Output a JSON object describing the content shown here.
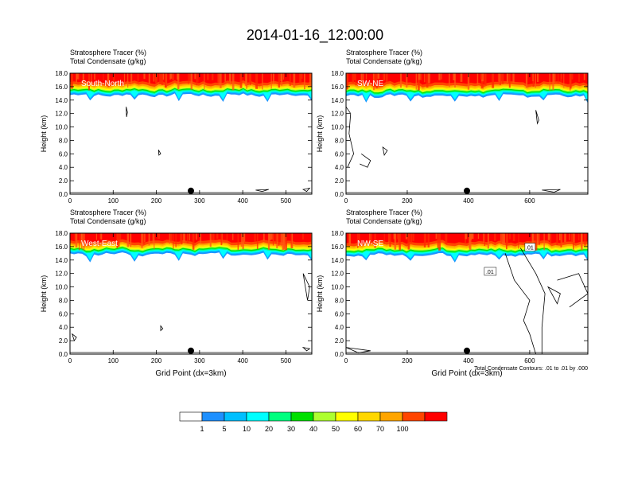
{
  "figure": {
    "title": "2014-01-16_12:00:00",
    "contour_note": "Total Condensate Contours: .01 to .01 by .000",
    "contour_label": ".01"
  },
  "colorbar": {
    "colors": [
      "#ffffff",
      "#1e90ff",
      "#00bfff",
      "#00ffff",
      "#00ff7f",
      "#00e000",
      "#adff2f",
      "#ffff00",
      "#ffd700",
      "#ffa500",
      "#ff4500",
      "#ff0000"
    ],
    "labels": [
      "1",
      "5",
      "10",
      "20",
      "30",
      "40",
      "50",
      "60",
      "70",
      "100"
    ]
  },
  "chart_data": [
    {
      "type": "heatmap",
      "panel": "South-North",
      "title_lines": [
        "Stratosphere Tracer   (%)",
        "Total Condensate   (g/kg)"
      ],
      "ylabel": "Height (km)",
      "xlabel": "",
      "ylim": [
        0,
        18
      ],
      "xlim": [
        0,
        560
      ],
      "yticks": [
        "0.0",
        "2.0",
        "4.0",
        "6.0",
        "8.0",
        "10.0",
        "12.0",
        "14.0",
        "16.0",
        "18.0"
      ],
      "xticks": [
        "0",
        "100",
        "200",
        "300",
        "400",
        "500"
      ],
      "marker_x": 280,
      "tropopause_km": 15.3,
      "contours": [
        [
          [
            130,
            13
          ],
          [
            133,
            12.2
          ],
          [
            131,
            11.5
          ]
        ],
        [
          [
            205,
            6.6
          ],
          [
            210,
            6
          ],
          [
            206,
            5.8
          ]
        ],
        [
          [
            430,
            0.6
          ],
          [
            460,
            0.7
          ],
          [
            445,
            0.4
          ]
        ],
        [
          [
            540,
            0.7
          ],
          [
            555,
            0.9
          ],
          [
            548,
            0.4
          ]
        ]
      ]
    },
    {
      "type": "heatmap",
      "panel": "SW-NE",
      "title_lines": [
        "Stratosphere Tracer   (%)",
        "Total Condensate   (g/kg)"
      ],
      "ylabel": "Height (km)",
      "xlabel": "",
      "ylim": [
        0,
        18
      ],
      "xlim": [
        0,
        790
      ],
      "yticks": [
        "0.0",
        "2.0",
        "4.0",
        "6.0",
        "8.0",
        "10.0",
        "12.0",
        "14.0",
        "16.0",
        "18.0"
      ],
      "xticks": [
        "0",
        "200",
        "400",
        "600"
      ],
      "marker_x": 395,
      "tropopause_km": 15.2,
      "contours": [
        [
          [
            0,
            13
          ],
          [
            15,
            12
          ],
          [
            10,
            9
          ],
          [
            25,
            6
          ],
          [
            5,
            4
          ]
        ],
        [
          [
            50,
            6
          ],
          [
            80,
            5
          ],
          [
            70,
            4
          ],
          [
            45,
            4.5
          ]
        ],
        [
          [
            120,
            7
          ],
          [
            135,
            6.5
          ],
          [
            125,
            5.8
          ]
        ],
        [
          [
            620,
            12.5
          ],
          [
            630,
            11
          ],
          [
            625,
            10.5
          ]
        ],
        [
          [
            640,
            0.6
          ],
          [
            700,
            0.7
          ],
          [
            680,
            0.3
          ]
        ]
      ]
    },
    {
      "type": "heatmap",
      "panel": "West-East",
      "title_lines": [
        "Stratosphere Tracer   (%)",
        "Total Condensate   (g/kg)"
      ],
      "ylabel": "Height (km)",
      "xlabel": "Grid Point (dx=3km)",
      "ylim": [
        0,
        18
      ],
      "xlim": [
        0,
        560
      ],
      "yticks": [
        "0.0",
        "2.0",
        "4.0",
        "6.0",
        "8.0",
        "10.0",
        "12.0",
        "14.0",
        "16.0",
        "18.0"
      ],
      "xticks": [
        "0",
        "100",
        "200",
        "300",
        "400",
        "500"
      ],
      "marker_x": 280,
      "tropopause_km": 15.4,
      "contours": [
        [
          [
            540,
            12
          ],
          [
            555,
            10
          ],
          [
            550,
            8
          ]
        ],
        [
          [
            5,
            3
          ],
          [
            15,
            2.5
          ],
          [
            10,
            2
          ]
        ],
        [
          [
            210,
            4.2
          ],
          [
            215,
            3.8
          ],
          [
            210,
            3.5
          ]
        ],
        [
          [
            540,
            1
          ],
          [
            555,
            0.8
          ],
          [
            548,
            0.5
          ]
        ]
      ]
    },
    {
      "type": "heatmap",
      "panel": "NW-SE",
      "title_lines": [
        "Stratosphere Tracer   (%)",
        "Total Condensate   (g/kg)"
      ],
      "ylabel": "Height (km)",
      "xlabel": "Grid Point (dx=3km)",
      "ylim": [
        0,
        18
      ],
      "xlim": [
        0,
        790
      ],
      "yticks": [
        "0.0",
        "2.0",
        "4.0",
        "6.0",
        "8.0",
        "10.0",
        "12.0",
        "14.0",
        "16.0",
        "18.0"
      ],
      "xticks": [
        "0",
        "200",
        "400",
        "600"
      ],
      "marker_x": 395,
      "tropopause_km": 15.3,
      "contours": [
        [
          [
            520,
            15
          ],
          [
            550,
            11
          ],
          [
            600,
            8
          ],
          [
            580,
            5
          ],
          [
            600,
            3
          ],
          [
            620,
            0
          ]
        ],
        [
          [
            570,
            15.8
          ],
          [
            620,
            12
          ],
          [
            650,
            9
          ],
          [
            640,
            4
          ],
          [
            640,
            0
          ]
        ],
        [
          [
            660,
            10
          ],
          [
            700,
            9
          ],
          [
            690,
            7.5
          ]
        ],
        [
          [
            690,
            11
          ],
          [
            760,
            12
          ],
          [
            790,
            9
          ],
          [
            730,
            7
          ]
        ],
        [
          [
            0,
            1
          ],
          [
            80,
            0.5
          ],
          [
            40,
            0.2
          ]
        ]
      ]
    }
  ]
}
